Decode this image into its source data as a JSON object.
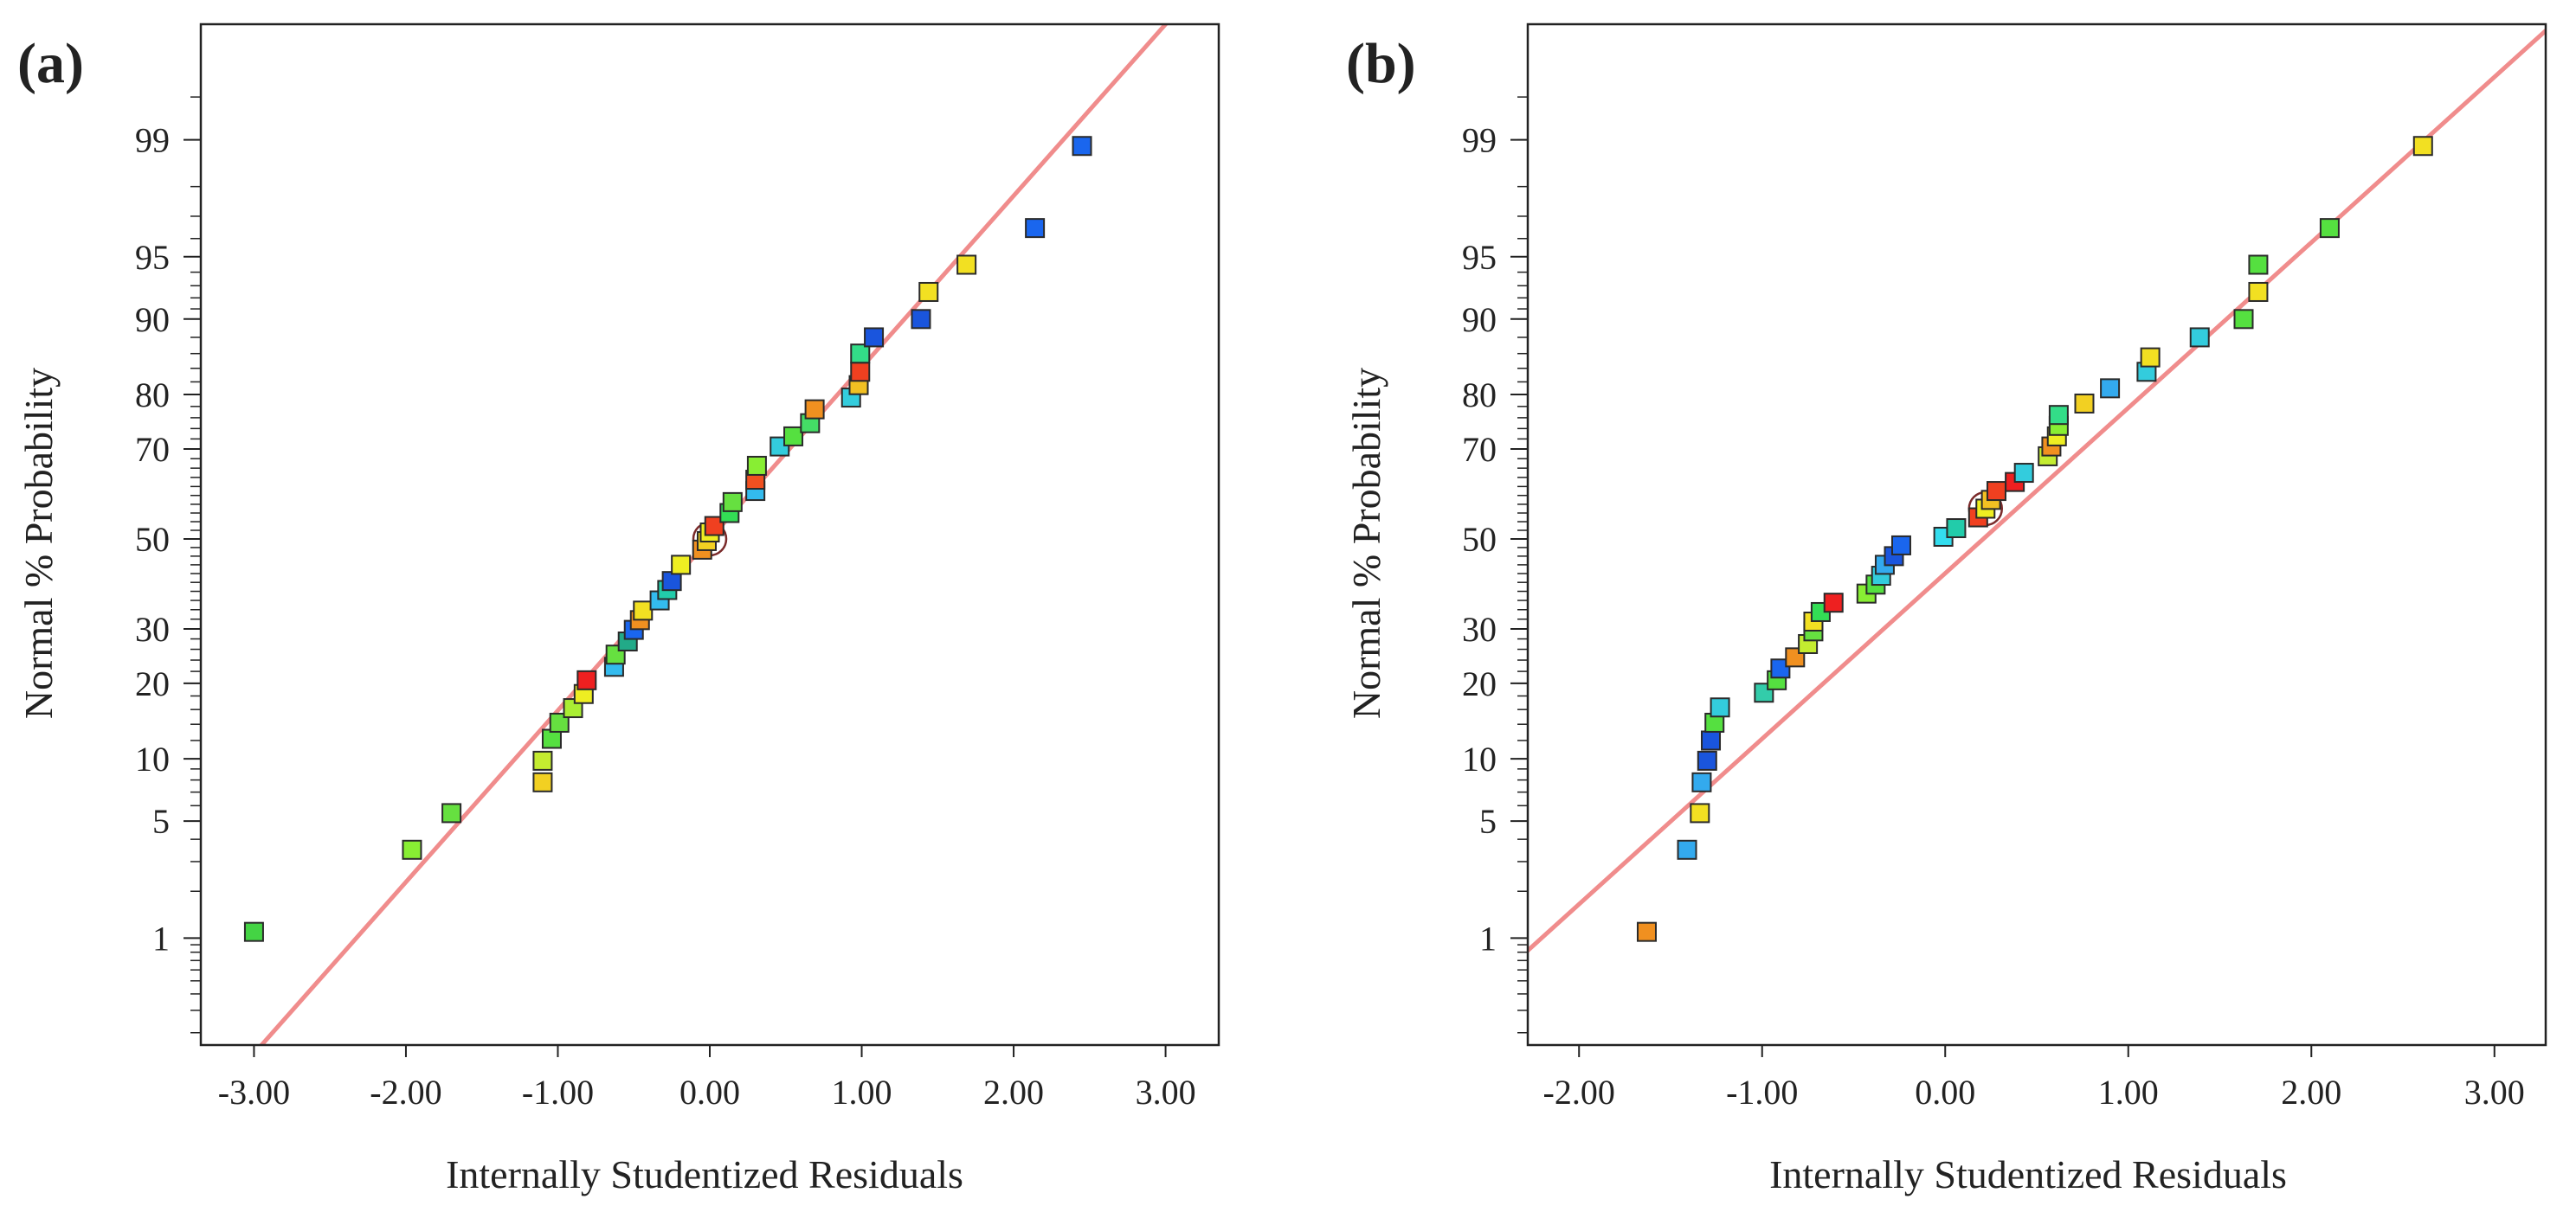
{
  "chart_data": [
    {
      "type": "scatter",
      "panel_label": "(a)",
      "title": "",
      "xlabel": "Internally Studentized Residuals",
      "ylabel": "Normal % Probability",
      "xlim": [
        -3.35,
        3.35
      ],
      "ylim_probit": [
        -2.95,
        3.0
      ],
      "x_ticks": [
        -3.0,
        -2.0,
        -1.0,
        0.0,
        1.0,
        2.0,
        3.0
      ],
      "x_tick_labels": [
        "-3.00",
        "-2.00",
        "-1.00",
        "0.00",
        "1.00",
        "2.00",
        "3.00"
      ],
      "y_ticks": [
        1,
        5,
        10,
        20,
        30,
        50,
        70,
        80,
        90,
        95,
        99
      ],
      "y_tick_labels": [
        "1",
        "5",
        "10",
        "20",
        "30",
        "50",
        "70",
        "80",
        "90",
        "95",
        "99"
      ],
      "reference_line": {
        "description": "normal reference line",
        "color": "#f08c8c",
        "mu": 0.0,
        "sigma": 1.0
      },
      "highlight": {
        "x": 0.0,
        "y": 50
      },
      "points": [
        {
          "x": -3.0,
          "y": 1.1,
          "color": "#44d444"
        },
        {
          "x": -1.96,
          "y": 3.5,
          "color": "#88ee33"
        },
        {
          "x": -1.7,
          "y": 5.5,
          "color": "#66e040"
        },
        {
          "x": -1.1,
          "y": 7.8,
          "color": "#f2d022"
        },
        {
          "x": -1.1,
          "y": 9.8,
          "color": "#c4ec30"
        },
        {
          "x": -1.04,
          "y": 12.2,
          "color": "#55e040"
        },
        {
          "x": -0.99,
          "y": 14.2,
          "color": "#66e040"
        },
        {
          "x": -0.9,
          "y": 16.2,
          "color": "#aaee33"
        },
        {
          "x": -0.83,
          "y": 18.3,
          "color": "#eeee22"
        },
        {
          "x": -0.81,
          "y": 20.5,
          "color": "#ee2020"
        },
        {
          "x": -0.63,
          "y": 22.8,
          "color": "#33bbee"
        },
        {
          "x": -0.62,
          "y": 25.0,
          "color": "#66e040"
        },
        {
          "x": -0.54,
          "y": 27.5,
          "color": "#22aa88"
        },
        {
          "x": -0.5,
          "y": 29.8,
          "color": "#1a66ee"
        },
        {
          "x": -0.46,
          "y": 31.8,
          "color": "#f09020"
        },
        {
          "x": -0.44,
          "y": 33.8,
          "color": "#f2e022"
        },
        {
          "x": -0.33,
          "y": 36.0,
          "color": "#33bbee"
        },
        {
          "x": -0.28,
          "y": 38.3,
          "color": "#22ccaa"
        },
        {
          "x": -0.25,
          "y": 40.3,
          "color": "#1a55dd"
        },
        {
          "x": -0.19,
          "y": 44.0,
          "color": "#eeee22"
        },
        {
          "x": -0.05,
          "y": 47.5,
          "color": "#f09020"
        },
        {
          "x": -0.02,
          "y": 49.5,
          "color": "#f2d022"
        },
        {
          "x": 0.0,
          "y": 51.5,
          "color": "#eeee22"
        },
        {
          "x": 0.03,
          "y": 53.0,
          "color": "#f04020"
        },
        {
          "x": 0.13,
          "y": 56.0,
          "color": "#33dd55"
        },
        {
          "x": 0.15,
          "y": 58.5,
          "color": "#66e040"
        },
        {
          "x": 0.3,
          "y": 61.0,
          "color": "#33bbee"
        },
        {
          "x": 0.3,
          "y": 63.5,
          "color": "#f05020"
        },
        {
          "x": 0.31,
          "y": 66.5,
          "color": "#88ee33"
        },
        {
          "x": 0.46,
          "y": 70.5,
          "color": "#33ccdd"
        },
        {
          "x": 0.55,
          "y": 72.5,
          "color": "#55e040"
        },
        {
          "x": 0.66,
          "y": 75.0,
          "color": "#44dd66"
        },
        {
          "x": 0.69,
          "y": 77.5,
          "color": "#f09020"
        },
        {
          "x": 0.93,
          "y": 79.5,
          "color": "#33ccdd"
        },
        {
          "x": 0.98,
          "y": 81.5,
          "color": "#f2c022"
        },
        {
          "x": 0.99,
          "y": 83.5,
          "color": "#f04020"
        },
        {
          "x": 0.99,
          "y": 86.0,
          "color": "#33dd88"
        },
        {
          "x": 1.08,
          "y": 88.0,
          "color": "#1a55dd"
        },
        {
          "x": 1.39,
          "y": 90.0,
          "color": "#1a55dd"
        },
        {
          "x": 1.44,
          "y": 92.5,
          "color": "#f2e022"
        },
        {
          "x": 1.69,
          "y": 94.5,
          "color": "#f2e022"
        },
        {
          "x": 2.14,
          "y": 96.5,
          "color": "#1a66ee"
        },
        {
          "x": 2.45,
          "y": 98.9,
          "color": "#1a66ee"
        }
      ]
    },
    {
      "type": "scatter",
      "panel_label": "(b)",
      "title": "",
      "xlabel": "Internally Studentized Residuals",
      "ylabel": "Normal % Probability",
      "xlim": [
        -2.28,
        3.28
      ],
      "ylim_probit": [
        -2.95,
        3.0
      ],
      "x_ticks": [
        -2.0,
        -1.0,
        0.0,
        1.0,
        2.0,
        3.0
      ],
      "x_tick_labels": [
        "-2.00",
        "-1.00",
        "0.00",
        "1.00",
        "2.00",
        "3.00"
      ],
      "y_ticks": [
        1,
        5,
        10,
        20,
        30,
        50,
        70,
        80,
        90,
        95,
        99
      ],
      "y_tick_labels": [
        "1",
        "5",
        "10",
        "20",
        "30",
        "50",
        "70",
        "80",
        "90",
        "95",
        "99"
      ],
      "reference_line": {
        "description": "normal reference line",
        "color": "#f08c8c",
        "mu": 0.208,
        "sigma": 1.037
      },
      "highlight": {
        "x": 0.22,
        "y": 57
      },
      "points": [
        {
          "x": -1.63,
          "y": 1.1,
          "color": "#f09020"
        },
        {
          "x": -1.41,
          "y": 3.5,
          "color": "#33aaee"
        },
        {
          "x": -1.34,
          "y": 5.5,
          "color": "#f2e022"
        },
        {
          "x": -1.33,
          "y": 7.8,
          "color": "#33aaee"
        },
        {
          "x": -1.3,
          "y": 9.8,
          "color": "#1a55dd"
        },
        {
          "x": -1.28,
          "y": 12.0,
          "color": "#1a55dd"
        },
        {
          "x": -1.26,
          "y": 14.2,
          "color": "#55e040"
        },
        {
          "x": -1.23,
          "y": 16.3,
          "color": "#33ccdd"
        },
        {
          "x": -0.99,
          "y": 18.5,
          "color": "#33ccaa"
        },
        {
          "x": -0.92,
          "y": 20.5,
          "color": "#55e040"
        },
        {
          "x": -0.9,
          "y": 22.5,
          "color": "#1a66ee"
        },
        {
          "x": -0.82,
          "y": 24.5,
          "color": "#f09020"
        },
        {
          "x": -0.75,
          "y": 27.0,
          "color": "#c4ec30"
        },
        {
          "x": -0.72,
          "y": 29.5,
          "color": "#66e040"
        },
        {
          "x": -0.72,
          "y": 31.5,
          "color": "#f2e022"
        },
        {
          "x": -0.68,
          "y": 33.5,
          "color": "#33dd55"
        },
        {
          "x": -0.61,
          "y": 35.5,
          "color": "#ee2020"
        },
        {
          "x": -0.43,
          "y": 37.5,
          "color": "#88ee33"
        },
        {
          "x": -0.38,
          "y": 39.5,
          "color": "#55e040"
        },
        {
          "x": -0.35,
          "y": 41.5,
          "color": "#33ccdd"
        },
        {
          "x": -0.33,
          "y": 44.0,
          "color": "#33aaee"
        },
        {
          "x": -0.28,
          "y": 46.0,
          "color": "#1a55dd"
        },
        {
          "x": -0.24,
          "y": 48.5,
          "color": "#1a66ee"
        },
        {
          "x": -0.01,
          "y": 50.5,
          "color": "#33ddee"
        },
        {
          "x": 0.06,
          "y": 52.5,
          "color": "#22ccaa"
        },
        {
          "x": 0.18,
          "y": 55.0,
          "color": "#f04020"
        },
        {
          "x": 0.22,
          "y": 57.0,
          "color": "#eeee22"
        },
        {
          "x": 0.25,
          "y": 59.0,
          "color": "#f2c022"
        },
        {
          "x": 0.28,
          "y": 61.0,
          "color": "#f04020"
        },
        {
          "x": 0.38,
          "y": 63.0,
          "color": "#ee2020"
        },
        {
          "x": 0.43,
          "y": 65.0,
          "color": "#33ccdd"
        },
        {
          "x": 0.56,
          "y": 68.5,
          "color": "#c4ec30"
        },
        {
          "x": 0.58,
          "y": 70.5,
          "color": "#f09020"
        },
        {
          "x": 0.61,
          "y": 72.5,
          "color": "#eeee22"
        },
        {
          "x": 0.62,
          "y": 74.5,
          "color": "#88ee33"
        },
        {
          "x": 0.62,
          "y": 76.5,
          "color": "#33dd88"
        },
        {
          "x": 0.76,
          "y": 78.5,
          "color": "#f2d022"
        },
        {
          "x": 0.9,
          "y": 81.0,
          "color": "#33aaee"
        },
        {
          "x": 1.1,
          "y": 83.5,
          "color": "#33ccdd"
        },
        {
          "x": 1.12,
          "y": 85.5,
          "color": "#f2e022"
        },
        {
          "x": 1.39,
          "y": 88.0,
          "color": "#33ccdd"
        },
        {
          "x": 1.63,
          "y": 90.0,
          "color": "#55e040"
        },
        {
          "x": 1.71,
          "y": 92.5,
          "color": "#f2e022"
        },
        {
          "x": 1.71,
          "y": 94.5,
          "color": "#55e040"
        },
        {
          "x": 2.1,
          "y": 96.5,
          "color": "#55e040"
        },
        {
          "x": 2.61,
          "y": 98.9,
          "color": "#f2e022"
        }
      ]
    }
  ]
}
